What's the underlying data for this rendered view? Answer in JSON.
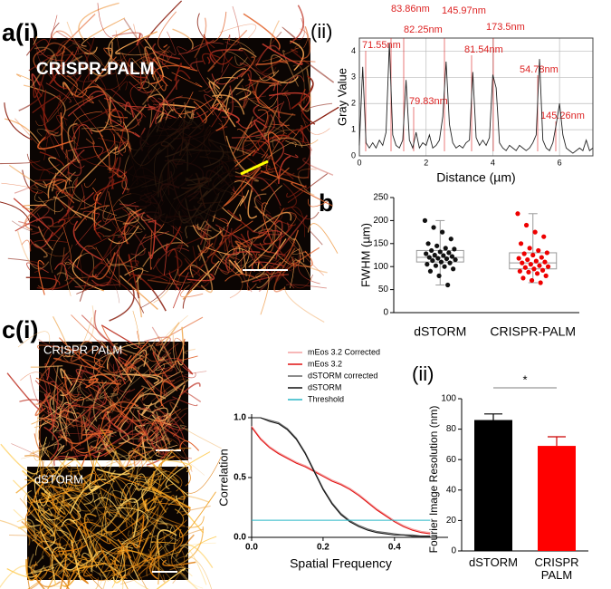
{
  "panels": {
    "a": "a(i)",
    "a2": "(ii)",
    "b": "b",
    "c": "c(i)",
    "c2": "(ii)",
    "img_a": "CRISPR-PALM",
    "img_c1": "CRISPR PALM",
    "img_c2": "dSTORM"
  },
  "chart_data": [
    {
      "type": "line",
      "xlabel": "Distance (µm)",
      "ylabel": "Gray Value",
      "grid": true,
      "xlim": [
        0,
        7
      ],
      "xticks": [
        0,
        2,
        4,
        6
      ],
      "ylim": [
        0,
        4.5
      ],
      "yticks": [
        0,
        1,
        2,
        3,
        4
      ],
      "annotations": [
        "71.55nm",
        "83.86nm",
        "82.25nm",
        "145.97nm",
        "79.83nm",
        "81.54nm",
        "173.5nm",
        "54.78nm",
        "145.26nm"
      ],
      "annotation_color": "#d22",
      "x": [
        0,
        0.1,
        0.2,
        0.3,
        0.4,
        0.5,
        0.6,
        0.7,
        0.8,
        0.9,
        1,
        1.1,
        1.2,
        1.3,
        1.4,
        1.5,
        1.6,
        1.7,
        1.8,
        1.9,
        2,
        2.1,
        2.2,
        2.3,
        2.4,
        2.5,
        2.6,
        2.7,
        2.8,
        2.9,
        3,
        3.1,
        3.2,
        3.3,
        3.4,
        3.5,
        3.6,
        3.7,
        3.8,
        3.9,
        4,
        4.1,
        4.2,
        4.3,
        4.4,
        4.5,
        4.6,
        4.7,
        4.8,
        4.9,
        5,
        5.1,
        5.2,
        5.3,
        5.4,
        5.5,
        5.6,
        5.7,
        5.8,
        5.9,
        6,
        6.1,
        6.2,
        6.3,
        6.4,
        6.5,
        6.6,
        6.7,
        6.8,
        6.9,
        7
      ],
      "series": [
        {
          "color": "#222",
          "values": [
            0.4,
            3.4,
            0.5,
            0.3,
            0.5,
            0.3,
            0.6,
            0.4,
            0.9,
            4.3,
            0.8,
            0.4,
            0.3,
            0.6,
            2.9,
            0.6,
            0.3,
            0.9,
            0.3,
            0.5,
            0.4,
            0.8,
            0.3,
            0.4,
            0.6,
            1.5,
            3.6,
            1.2,
            0.5,
            0.3,
            0.4,
            0.3,
            0.5,
            0.6,
            3.2,
            0.7,
            0.4,
            0.6,
            0.4,
            0.7,
            3.1,
            2.6,
            0.5,
            0.3,
            0.2,
            0.4,
            0.3,
            0.2,
            0.4,
            0.3,
            0.2,
            0.3,
            0.5,
            0.8,
            3.7,
            0.6,
            0.3,
            0.2,
            0.5,
            1.2,
            2.0,
            0.8,
            0.3,
            0.2,
            0.1,
            0.2,
            0.3,
            0.2,
            0.6,
            0.2,
            0.3
          ]
        }
      ]
    },
    {
      "type": "box",
      "ylabel": "FWHM (µm)",
      "categories": [
        "dSTORM",
        "CRISPR-PALM"
      ],
      "ylim": [
        0,
        250
      ],
      "yticks": [
        0,
        50,
        100,
        150,
        200,
        250
      ],
      "colors": [
        "#111",
        "#e00"
      ],
      "boxes": [
        {
          "min": 60,
          "q1": 110,
          "median": 120,
          "q3": 135,
          "max": 200
        },
        {
          "min": 65,
          "q1": 95,
          "median": 108,
          "q3": 130,
          "max": 215
        }
      ],
      "points": [
        [
          200,
          185,
          175,
          160,
          150,
          145,
          140,
          138,
          135,
          132,
          130,
          128,
          125,
          124,
          122,
          120,
          118,
          117,
          115,
          113,
          110,
          108,
          105,
          102,
          100,
          95,
          90,
          80,
          60
        ],
        [
          215,
          190,
          175,
          165,
          150,
          140,
          135,
          130,
          128,
          125,
          120,
          118,
          115,
          112,
          110,
          108,
          105,
          102,
          100,
          98,
          95,
          92,
          90,
          88,
          85,
          80,
          75,
          70,
          65
        ]
      ]
    },
    {
      "type": "line",
      "xlabel": "Spatial Frequency",
      "ylabel": "Correlation",
      "xlim": [
        0,
        0.55
      ],
      "xticks": [
        {
          "value": 0,
          "label": "0.0"
        },
        0.2,
        0.4
      ],
      "ylim": [
        0,
        1
      ],
      "yticks": [
        {
          "value": 0,
          "label": "0.0"
        },
        0.5,
        {
          "value": 1,
          "label": "1.0"
        }
      ],
      "x": [
        0,
        0.025,
        0.05,
        0.075,
        0.1,
        0.125,
        0.15,
        0.175,
        0.2,
        0.225,
        0.25,
        0.275,
        0.3,
        0.325,
        0.35,
        0.375,
        0.4,
        0.425,
        0.45,
        0.475,
        0.5
      ],
      "series": [
        {
          "name": "mEos 3.2 Corrected",
          "color": "#f4a0a0",
          "values": [
            0.93,
            0.83,
            0.76,
            0.71,
            0.67,
            0.63,
            0.6,
            0.56,
            0.52,
            0.48,
            0.45,
            0.41,
            0.36,
            0.3,
            0.24,
            0.19,
            0.14,
            0.1,
            0.07,
            0.05,
            0.04
          ]
        },
        {
          "name": "mEos 3.2",
          "color": "#e01010",
          "values": [
            0.92,
            0.82,
            0.75,
            0.7,
            0.66,
            0.62,
            0.59,
            0.55,
            0.51,
            0.47,
            0.44,
            0.4,
            0.35,
            0.29,
            0.23,
            0.18,
            0.13,
            0.09,
            0.06,
            0.04,
            0.03
          ]
        },
        {
          "name": "dSTORM corrected",
          "color": "#666",
          "values": [
            1,
            1,
            0.98,
            0.96,
            0.91,
            0.83,
            0.71,
            0.56,
            0.41,
            0.29,
            0.2,
            0.14,
            0.1,
            0.07,
            0.05,
            0.04,
            0.03,
            0.02,
            0.02,
            0.01,
            0.01
          ]
        },
        {
          "name": "dSTORM",
          "color": "#111",
          "values": [
            1,
            1,
            0.97,
            0.95,
            0.9,
            0.82,
            0.7,
            0.55,
            0.4,
            0.28,
            0.19,
            0.13,
            0.09,
            0.06,
            0.04,
            0.03,
            0.02,
            0.02,
            0.01,
            0.01,
            0.01
          ]
        },
        {
          "name": "Threshold",
          "color": "#29b6c6",
          "values": [
            0.143,
            0.143,
            0.143,
            0.143,
            0.143,
            0.143,
            0.143,
            0.143,
            0.143,
            0.143,
            0.143,
            0.143,
            0.143,
            0.143,
            0.143,
            0.143,
            0.143,
            0.143,
            0.143,
            0.143,
            0.143
          ]
        }
      ]
    },
    {
      "type": "bar",
      "ylabel": "Fourier Image Resolution (nm)",
      "categories": [
        "dSTORM",
        "CRISPR PALM"
      ],
      "values": [
        86,
        69
      ],
      "errors": [
        4,
        6
      ],
      "colors": [
        "#000",
        "#f00"
      ],
      "annotation": "*",
      "ylim": [
        0,
        100
      ],
      "yticks": [
        0,
        20,
        40,
        60,
        80,
        100
      ]
    }
  ]
}
